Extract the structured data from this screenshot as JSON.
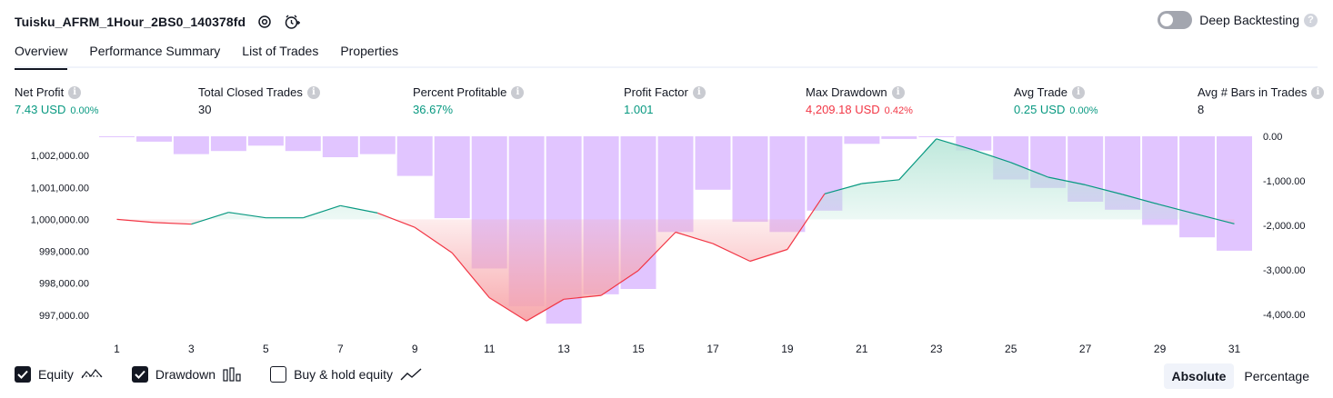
{
  "header": {
    "title": "Tuisku_AFRM_1Hour_2BS0_140378fd",
    "deep_backtesting_label": "Deep Backtesting",
    "deep_backtesting_enabled": false
  },
  "tabs": [
    {
      "label": "Overview",
      "active": true
    },
    {
      "label": "Performance Summary",
      "active": false
    },
    {
      "label": "List of Trades",
      "active": false
    },
    {
      "label": "Properties",
      "active": false
    }
  ],
  "metrics": {
    "net_profit": {
      "label": "Net Profit",
      "value": "7.43 USD",
      "pct": "0.00%"
    },
    "total_closed_trades": {
      "label": "Total Closed Trades",
      "value": "30"
    },
    "percent_profitable": {
      "label": "Percent Profitable",
      "value": "36.67%"
    },
    "profit_factor": {
      "label": "Profit Factor",
      "value": "1.001"
    },
    "max_drawdown": {
      "label": "Max Drawdown",
      "value": "4,209.18 USD",
      "pct": "0.42%"
    },
    "avg_trade": {
      "label": "Avg Trade",
      "value": "0.25 USD",
      "pct": "0.00%"
    },
    "avg_bars": {
      "label": "Avg # Bars in Trades",
      "value": "8"
    }
  },
  "legend": {
    "equity": {
      "label": "Equity",
      "checked": true
    },
    "drawdown": {
      "label": "Drawdown",
      "checked": true
    },
    "buy_hold": {
      "label": "Buy & hold equity",
      "checked": false
    }
  },
  "mode": {
    "absolute": "Absolute",
    "percentage": "Percentage",
    "selected": "Absolute"
  },
  "colors": {
    "positive": "#089981",
    "negative": "#f23645",
    "drawdown_bar": "#dfc2ff",
    "equity_fill_top": "#b8e6d8",
    "loss_fill": "#f7a4a8"
  },
  "chart_data": {
    "type": "line+bar",
    "x": [
      1,
      2,
      3,
      4,
      5,
      6,
      7,
      8,
      9,
      10,
      11,
      12,
      13,
      14,
      15,
      16,
      17,
      18,
      19,
      20,
      21,
      22,
      23,
      24,
      25,
      26,
      27,
      28,
      29,
      30,
      31
    ],
    "x_tick_labels": [
      "1",
      "3",
      "5",
      "7",
      "9",
      "11",
      "13",
      "15",
      "17",
      "19",
      "21",
      "23",
      "25",
      "27",
      "29",
      "31"
    ],
    "equity": {
      "axis": "left",
      "baseline": 1000000,
      "values": [
        1000000,
        999900,
        999850,
        1000220,
        1000050,
        1000050,
        1000430,
        1000200,
        999750,
        998950,
        997550,
        996820,
        997500,
        997620,
        998400,
        999600,
        999240,
        998690,
        999060,
        1000800,
        1001120,
        1001240,
        1002520,
        1002170,
        1001780,
        1001320,
        1001080,
        1000780,
        1000460,
        1000160,
        999860
      ]
    },
    "drawdown": {
      "axis": "right",
      "values": [
        -20,
        -120,
        -400,
        -330,
        -210,
        -330,
        -470,
        -400,
        -890,
        -1840,
        -2970,
        -3820,
        -4209,
        -3550,
        -3430,
        -2150,
        -1200,
        -1920,
        -2150,
        -1670,
        -170,
        -60,
        0,
        -320,
        -970,
        -1160,
        -1470,
        -1650,
        -1990,
        -2270,
        -2570
      ]
    },
    "left_axis": {
      "min": 996400,
      "max": 1002600,
      "ticks": [
        "1,002,000.00",
        "1,001,000.00",
        "1,000,000.00",
        "999,000.00",
        "998,000.00",
        "997,000.00"
      ],
      "tick_values": [
        1002000,
        1001000,
        1000000,
        999000,
        998000,
        997000
      ]
    },
    "right_axis": {
      "min": -4450,
      "max": 0,
      "ticks": [
        "0.00",
        "-1,000.00",
        "-2,000.00",
        "-3,000.00",
        "-4,000.00"
      ],
      "tick_values": [
        0,
        -1000,
        -2000,
        -3000,
        -4000
      ]
    },
    "grid": false
  }
}
